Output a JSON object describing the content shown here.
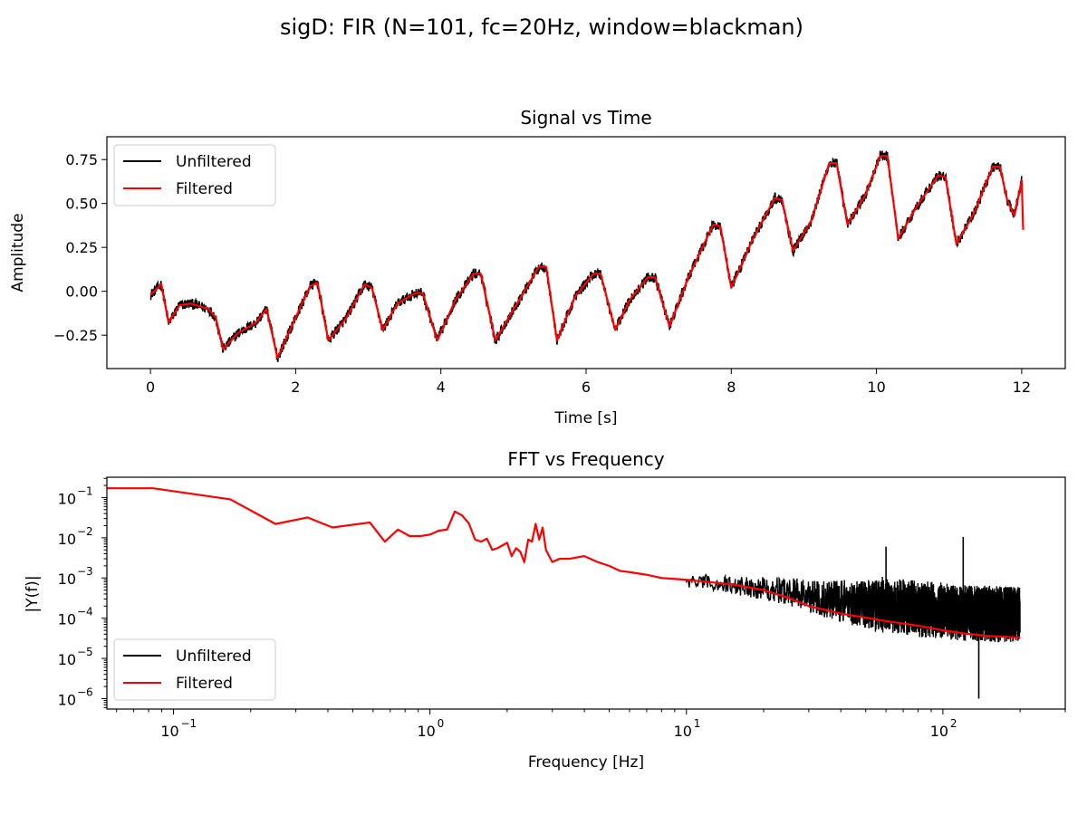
{
  "figure_title": "sigD: FIR (N=101, fc=20Hz, window=blackman)",
  "colors": {
    "unfiltered": "#000000",
    "filtered": "#ff0000"
  },
  "chart_data": [
    {
      "type": "line",
      "title": "Signal vs Time",
      "xlabel": "Time [s]",
      "ylabel": "Amplitude",
      "xlim": [
        -0.6,
        12.6
      ],
      "ylim": [
        -0.44,
        0.88
      ],
      "xticks": [
        0,
        2,
        4,
        6,
        8,
        10,
        12
      ],
      "xtick_labels": [
        "0",
        "2",
        "4",
        "6",
        "8",
        "10",
        "12"
      ],
      "yticks": [
        -0.25,
        0.0,
        0.25,
        0.5,
        0.75
      ],
      "ytick_labels": [
        "−0.25",
        "0.00",
        "0.25",
        "0.50",
        "0.75"
      ],
      "legend": {
        "position": "upper-left",
        "entries": [
          "Unfiltered",
          "Filtered"
        ]
      },
      "series": [
        {
          "name": "Unfiltered",
          "color": "#000000",
          "noise": 0.03
        },
        {
          "name": "Filtered",
          "color": "#ff0000",
          "x": [
            0.0,
            0.15,
            0.25,
            0.4,
            0.55,
            0.8,
            0.9,
            1.0,
            1.2,
            1.45,
            1.6,
            1.75,
            2.0,
            2.2,
            2.3,
            2.45,
            2.7,
            2.95,
            3.05,
            3.2,
            3.4,
            3.65,
            3.75,
            3.95,
            4.2,
            4.45,
            4.55,
            4.75,
            5.05,
            5.35,
            5.45,
            5.6,
            5.85,
            6.1,
            6.2,
            6.4,
            6.6,
            6.85,
            6.95,
            7.15,
            7.4,
            7.75,
            7.85,
            8.0,
            8.3,
            8.6,
            8.7,
            8.85,
            9.1,
            9.35,
            9.45,
            9.6,
            9.85,
            10.05,
            10.15,
            10.3,
            10.55,
            10.85,
            10.95,
            11.1,
            11.35,
            11.6,
            11.7,
            11.8,
            11.9,
            12.0,
            12.02
          ],
          "y": [
            -0.02,
            0.04,
            -0.18,
            -0.08,
            -0.07,
            -0.1,
            -0.15,
            -0.33,
            -0.24,
            -0.18,
            -0.1,
            -0.38,
            -0.15,
            0.03,
            0.05,
            -0.28,
            -0.15,
            0.04,
            0.02,
            -0.22,
            -0.07,
            -0.01,
            -0.01,
            -0.28,
            -0.05,
            0.1,
            0.1,
            -0.28,
            -0.07,
            0.14,
            0.14,
            -0.28,
            -0.03,
            0.1,
            0.1,
            -0.22,
            -0.05,
            0.08,
            0.08,
            -0.2,
            0.07,
            0.38,
            0.37,
            0.02,
            0.3,
            0.53,
            0.52,
            0.23,
            0.4,
            0.73,
            0.73,
            0.38,
            0.55,
            0.77,
            0.77,
            0.3,
            0.48,
            0.66,
            0.65,
            0.27,
            0.45,
            0.71,
            0.71,
            0.52,
            0.43,
            0.63,
            0.35
          ]
        }
      ]
    },
    {
      "type": "line",
      "title": "FFT vs Frequency",
      "xlabel": "Frequency [Hz]",
      "ylabel": "|Y(f)|",
      "xscale": "log",
      "yscale": "log",
      "xlim": [
        0.055,
        300
      ],
      "ylim": [
        5.5e-07,
        0.32
      ],
      "xticks": [
        0.1,
        1,
        10,
        100
      ],
      "xtick_labels": [
        "10",
        "10",
        "10",
        "10"
      ],
      "xtick_exponents": [
        "−1",
        "0",
        "1",
        "2"
      ],
      "yticks": [
        1e-06,
        1e-05,
        0.0001,
        0.001,
        0.01,
        0.1
      ],
      "ytick_labels": [
        "10",
        "10",
        "10",
        "10",
        "10",
        "10"
      ],
      "ytick_exponents": [
        "−6",
        "−5",
        "−4",
        "−3",
        "−2",
        "−1"
      ],
      "legend": {
        "position": "lower-left",
        "entries": [
          "Unfiltered",
          "Filtered"
        ]
      },
      "series": [
        {
          "name": "Unfiltered",
          "color": "#000000",
          "x": [
            0.03,
            0.0833,
            0.1667,
            0.25,
            0.333,
            0.417,
            0.583,
            0.667,
            0.75,
            0.833,
            0.917,
            1.0,
            1.083,
            1.167,
            1.25,
            1.333,
            1.417,
            1.5,
            1.583,
            1.667,
            1.75,
            1.833,
            2.0,
            2.083,
            2.167,
            2.25,
            2.333,
            2.417,
            2.5,
            2.583,
            2.667,
            2.75,
            2.833,
            3.0,
            3.2,
            3.5,
            4.0,
            4.5,
            5.0,
            5.5,
            6.0,
            7.0,
            8.0,
            10.0,
            12.0,
            15.0,
            20.0,
            25.0,
            30.0,
            40.0,
            60.0,
            80.0,
            100.0,
            120.0,
            150.0,
            200.0
          ],
          "y": [
            0.17,
            0.17,
            0.09,
            0.022,
            0.032,
            0.018,
            0.024,
            0.008,
            0.016,
            0.011,
            0.011,
            0.012,
            0.015,
            0.016,
            0.045,
            0.036,
            0.023,
            0.009,
            0.008,
            0.0095,
            0.005,
            0.0055,
            0.0075,
            0.0035,
            0.0055,
            0.0045,
            0.0025,
            0.009,
            0.008,
            0.022,
            0.009,
            0.018,
            0.005,
            0.0025,
            0.003,
            0.003,
            0.0035,
            0.0025,
            0.002,
            0.0015,
            0.0014,
            0.0012,
            0.001,
            0.0009,
            0.0008,
            0.0007,
            0.0006,
            0.0005,
            0.0004,
            0.0003,
            0.00025,
            0.0002,
            0.00018,
            0.00016,
            0.00015,
            0.00014
          ],
          "spikes": [
            {
              "x": 60,
              "y": 0.006
            },
            {
              "x": 120,
              "y": 0.0105
            },
            {
              "x": 138,
              "y": 1e-06
            }
          ],
          "noise_decades": 0.7
        },
        {
          "name": "Filtered",
          "color": "#ff0000",
          "x": [
            0.03,
            0.0833,
            0.1667,
            0.25,
            0.333,
            0.417,
            0.583,
            0.667,
            0.75,
            0.833,
            0.917,
            1.0,
            1.083,
            1.167,
            1.25,
            1.333,
            1.417,
            1.5,
            1.583,
            1.667,
            1.75,
            1.833,
            2.0,
            2.083,
            2.167,
            2.25,
            2.333,
            2.417,
            2.5,
            2.583,
            2.667,
            2.75,
            2.833,
            3.0,
            3.2,
            3.5,
            4.0,
            4.5,
            5.0,
            5.5,
            6.0,
            7.0,
            8.0,
            10.0,
            12.0,
            15.0,
            20.0,
            25.0,
            30.0,
            40.0,
            60.0,
            80.0,
            100.0,
            120.0,
            150.0,
            200.0
          ],
          "y": [
            0.17,
            0.17,
            0.09,
            0.022,
            0.032,
            0.018,
            0.024,
            0.008,
            0.016,
            0.011,
            0.011,
            0.012,
            0.015,
            0.016,
            0.045,
            0.036,
            0.023,
            0.009,
            0.008,
            0.0095,
            0.005,
            0.0055,
            0.0075,
            0.0035,
            0.0055,
            0.0045,
            0.0025,
            0.009,
            0.008,
            0.022,
            0.009,
            0.018,
            0.005,
            0.0025,
            0.003,
            0.003,
            0.0035,
            0.0025,
            0.002,
            0.0015,
            0.0014,
            0.0012,
            0.001,
            0.0009,
            0.0008,
            0.0007,
            0.0005,
            0.00032,
            0.0002,
            0.00013,
            8.5e-05,
            6.5e-05,
            5e-05,
            4.2e-05,
            3.6e-05,
            3.3e-05
          ]
        }
      ]
    }
  ]
}
